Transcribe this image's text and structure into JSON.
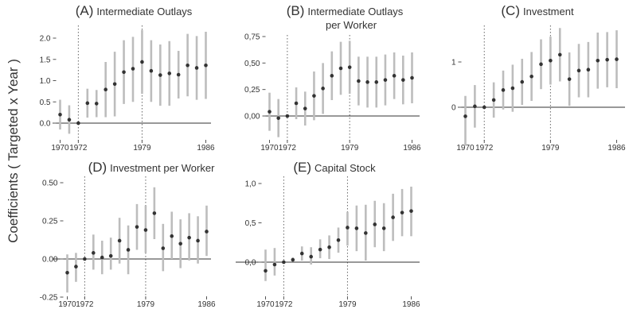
{
  "figure": {
    "ylabel": "Coefficients ( Targeted x Year )"
  },
  "chart_data": [
    {
      "id": "A",
      "type": "scatter",
      "letter": "(A)",
      "title_lines": [
        "Intermediate Outlays"
      ],
      "ylim": [
        -0.15,
        2.25
      ],
      "yticks": [
        0,
        0.5,
        1,
        1.5,
        2
      ],
      "ytick_labels": [
        "0.0",
        "0.5",
        "1.0",
        "1.5",
        "2.0"
      ],
      "xticks": [
        1970,
        1972,
        1979,
        1986
      ],
      "xtick_labels": [
        "1970",
        "1972",
        "1979",
        "1986"
      ],
      "vlines": [
        1972,
        1979
      ],
      "hline": 0,
      "x": [
        1970,
        1971,
        1972,
        1973,
        1974,
        1975,
        1976,
        1977,
        1978,
        1979,
        1980,
        1981,
        1982,
        1983,
        1984,
        1985,
        1986
      ],
      "y": [
        0.2,
        0.08,
        0.0,
        0.47,
        0.46,
        0.79,
        0.92,
        1.2,
        1.28,
        1.44,
        1.23,
        1.13,
        1.17,
        1.14,
        1.36,
        1.3,
        1.36
      ],
      "lo": [
        -0.15,
        -0.25,
        0.0,
        0.13,
        0.14,
        0.14,
        0.16,
        0.45,
        0.5,
        0.69,
        0.5,
        0.41,
        0.41,
        0.58,
        0.63,
        0.55,
        0.57
      ],
      "hi": [
        0.55,
        0.42,
        0.0,
        0.81,
        0.78,
        1.44,
        1.68,
        1.95,
        2.03,
        2.19,
        1.95,
        1.85,
        1.93,
        1.7,
        2.1,
        2.05,
        2.15
      ]
    },
    {
      "id": "B",
      "type": "scatter",
      "letter": "(B)",
      "title_lines": [
        "Intermediate Outlays",
        "per Worker"
      ],
      "ylim": [
        -0.22,
        0.8
      ],
      "yticks": [
        0,
        0.25,
        0.5,
        0.75
      ],
      "ytick_labels": [
        "0,00",
        "0,25",
        "0,50",
        "0,75"
      ],
      "xticks": [
        1970,
        1972,
        1979,
        1986
      ],
      "xtick_labels": [
        "1970",
        "1972",
        "1979",
        "1986"
      ],
      "vlines": [
        1972,
        1979
      ],
      "hline": 0,
      "x": [
        1970,
        1971,
        1972,
        1973,
        1974,
        1975,
        1976,
        1977,
        1978,
        1979,
        1980,
        1981,
        1982,
        1983,
        1984,
        1985,
        1986
      ],
      "y": [
        0.04,
        -0.02,
        0.0,
        0.12,
        0.07,
        0.19,
        0.26,
        0.38,
        0.45,
        0.46,
        0.33,
        0.32,
        0.32,
        0.34,
        0.38,
        0.34,
        0.36
      ],
      "lo": [
        -0.14,
        -0.2,
        0.0,
        -0.03,
        -0.09,
        -0.04,
        0.02,
        0.15,
        0.2,
        0.21,
        0.1,
        0.08,
        0.08,
        0.1,
        0.16,
        0.11,
        0.12
      ],
      "hi": [
        0.22,
        0.16,
        0.0,
        0.27,
        0.23,
        0.42,
        0.5,
        0.61,
        0.7,
        0.71,
        0.56,
        0.56,
        0.56,
        0.58,
        0.6,
        0.57,
        0.6
      ]
    },
    {
      "id": "C",
      "type": "scatter",
      "letter": "(C)",
      "title_lines": [
        "Investment"
      ],
      "ylim": [
        -0.9,
        1.85
      ],
      "yticks": [
        0,
        1
      ],
      "ytick_labels": [
        "0",
        "1"
      ],
      "xticks": [
        1970,
        1972,
        1979,
        1986
      ],
      "xtick_labels": [
        "1970",
        "1972",
        "1979",
        "1986"
      ],
      "vlines": [
        1972,
        1979
      ],
      "hline": 0,
      "x": [
        1970,
        1971,
        1972,
        1973,
        1974,
        1975,
        1976,
        1977,
        1978,
        1979,
        1980,
        1981,
        1982,
        1983,
        1984,
        1985,
        1986
      ],
      "y": [
        -0.2,
        0.02,
        0.0,
        0.16,
        0.38,
        0.42,
        0.56,
        0.68,
        0.95,
        1.03,
        1.16,
        0.62,
        0.81,
        0.83,
        1.03,
        1.05,
        1.06
      ],
      "lo": [
        -0.85,
        -0.45,
        0.0,
        -0.23,
        -0.05,
        -0.1,
        0.05,
        0.14,
        0.4,
        0.5,
        0.57,
        0.03,
        0.22,
        0.22,
        0.41,
        0.44,
        0.42
      ],
      "hi": [
        0.25,
        0.49,
        0.0,
        0.55,
        0.81,
        0.94,
        1.07,
        1.22,
        1.5,
        1.56,
        1.75,
        1.21,
        1.4,
        1.44,
        1.65,
        1.66,
        1.7
      ]
    },
    {
      "id": "D",
      "type": "scatter",
      "letter": "(D)",
      "title_lines": [
        "Investment per Worker"
      ],
      "ylim": [
        -0.27,
        0.52
      ],
      "yticks": [
        -0.25,
        0,
        0.25,
        0.5
      ],
      "ytick_labels": [
        "-0.25",
        "0.00",
        "0.25",
        "0.50"
      ],
      "xticks": [
        1970,
        1972,
        1979,
        1986
      ],
      "xtick_labels": [
        "1970",
        "1972",
        "1979",
        "1986"
      ],
      "vlines": [
        1972,
        1979
      ],
      "hline": 0,
      "x": [
        1970,
        1971,
        1972,
        1973,
        1974,
        1975,
        1976,
        1977,
        1978,
        1979,
        1980,
        1981,
        1982,
        1983,
        1984,
        1985,
        1986
      ],
      "y": [
        -0.09,
        -0.05,
        0.0,
        0.04,
        0.01,
        0.02,
        0.12,
        0.06,
        0.21,
        0.19,
        0.3,
        0.07,
        0.15,
        0.1,
        0.14,
        0.12,
        0.18
      ],
      "lo": [
        -0.22,
        -0.15,
        0.0,
        -0.07,
        -0.1,
        -0.07,
        -0.03,
        -0.1,
        0.06,
        0.04,
        0.13,
        -0.08,
        0.0,
        -0.06,
        -0.01,
        -0.03,
        0.02
      ],
      "hi": [
        0.03,
        0.04,
        0.0,
        0.16,
        0.12,
        0.14,
        0.27,
        0.22,
        0.36,
        0.35,
        0.47,
        0.23,
        0.31,
        0.26,
        0.3,
        0.28,
        0.35
      ]
    },
    {
      "id": "E",
      "type": "scatter",
      "letter": "(E)",
      "title_lines": [
        "Capital Stock"
      ],
      "ylim": [
        -0.25,
        1.05
      ],
      "yticks": [
        0,
        0.5,
        1
      ],
      "ytick_labels": [
        "0,0",
        "0,5",
        "1,0"
      ],
      "xticks": [
        1970,
        1972,
        1979,
        1986
      ],
      "xtick_labels": [
        "1970",
        "1972",
        "1979",
        "1986"
      ],
      "vlines": [
        1972,
        1979
      ],
      "hline": 0,
      "x": [
        1970,
        1971,
        1972,
        1973,
        1974,
        1975,
        1976,
        1977,
        1978,
        1979,
        1980,
        1981,
        1982,
        1983,
        1984,
        1985,
        1986
      ],
      "y": [
        -0.11,
        -0.03,
        0.0,
        0.03,
        0.11,
        0.07,
        0.16,
        0.19,
        0.28,
        0.44,
        0.43,
        0.37,
        0.48,
        0.43,
        0.57,
        0.63,
        0.65
      ],
      "lo": [
        -0.24,
        -0.17,
        0.0,
        0.01,
        0.02,
        -0.03,
        0.05,
        0.04,
        0.12,
        0.21,
        0.14,
        0.02,
        0.19,
        0.14,
        0.27,
        0.33,
        0.33
      ],
      "hi": [
        0.16,
        0.18,
        0.0,
        0.06,
        0.2,
        0.19,
        0.29,
        0.34,
        0.44,
        0.64,
        0.72,
        0.73,
        0.78,
        0.75,
        0.87,
        0.93,
        0.96
      ]
    }
  ]
}
